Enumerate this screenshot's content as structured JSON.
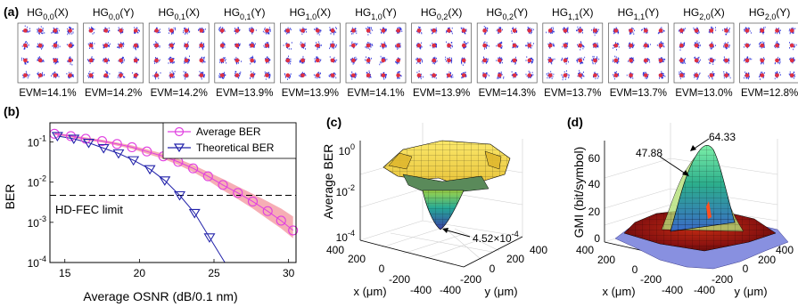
{
  "panel_labels": {
    "a": "(a)",
    "b": "(b)",
    "c": "(c)",
    "d": "(d)"
  },
  "constellations": [
    {
      "mode_base": "HG",
      "mode_sub": "0,0",
      "pol": "(X)",
      "evm": "EVM=14.1%"
    },
    {
      "mode_base": "HG",
      "mode_sub": "0,0",
      "pol": "(Y)",
      "evm": "EVM=14.2%"
    },
    {
      "mode_base": "HG",
      "mode_sub": "0,1",
      "pol": "(X)",
      "evm": "EVM=14.2%"
    },
    {
      "mode_base": "HG",
      "mode_sub": "0,1",
      "pol": "(Y)",
      "evm": "EVM=13.9%"
    },
    {
      "mode_base": "HG",
      "mode_sub": "1,0",
      "pol": "(X)",
      "evm": "EVM=13.9%"
    },
    {
      "mode_base": "HG",
      "mode_sub": "1,0",
      "pol": "(Y)",
      "evm": "EVM=14.1%"
    },
    {
      "mode_base": "HG",
      "mode_sub": "0,2",
      "pol": "(X)",
      "evm": "EVM=13.9%"
    },
    {
      "mode_base": "HG",
      "mode_sub": "0,2",
      "pol": "(Y)",
      "evm": "EVM=14.3%"
    },
    {
      "mode_base": "HG",
      "mode_sub": "1,1",
      "pol": "(X)",
      "evm": "EVM=13.7%"
    },
    {
      "mode_base": "HG",
      "mode_sub": "1,1",
      "pol": "(Y)",
      "evm": "EVM=13.7%"
    },
    {
      "mode_base": "HG",
      "mode_sub": "2,0",
      "pol": "(X)",
      "evm": "EVM=13.0%"
    },
    {
      "mode_base": "HG",
      "mode_sub": "2,0",
      "pol": "(Y)",
      "evm": "EVM=12.8%"
    }
  ],
  "colors": {
    "average": "#e040e0",
    "theoretical": "#2222aa",
    "band": "#f4a0a8",
    "cloud": "#2a30d8",
    "core": "#e03040"
  },
  "chart_data": {
    "type": "line",
    "xlabel": "Average OSNR (dB/0.1 nm)",
    "ylabel": "BER",
    "y_scale": "log",
    "xlim": [
      14,
      30.5
    ],
    "ylim": [
      0.0001,
      0.3
    ],
    "x_ticks": [
      "15",
      "20",
      "25",
      "30"
    ],
    "y_ticks": [
      {
        "base": "10",
        "exp": "-1"
      },
      {
        "base": "10",
        "exp": "-2"
      },
      {
        "base": "10",
        "exp": "-3"
      },
      {
        "base": "10",
        "exp": "-4"
      }
    ],
    "threshold": {
      "label": "HD-FEC limit",
      "value": 0.0047
    },
    "legend": {
      "position": "top-right"
    },
    "series": [
      {
        "name": "Average BER",
        "marker": "circle",
        "x": [
          14.3,
          15.4,
          16.4,
          17.5,
          18.5,
          19.5,
          20.5,
          21.6,
          22.6,
          23.6,
          24.6,
          25.6,
          26.6,
          27.6,
          28.6,
          29.5,
          30.3
        ],
        "y": [
          0.16,
          0.14,
          0.12,
          0.105,
          0.089,
          0.074,
          0.058,
          0.044,
          0.032,
          0.022,
          0.014,
          0.0085,
          0.0054,
          0.0033,
          0.0019,
          0.0011,
          0.00063
        ],
        "y_upper": [
          0.17,
          0.15,
          0.13,
          0.114,
          0.097,
          0.082,
          0.066,
          0.051,
          0.038,
          0.027,
          0.018,
          0.012,
          0.0078,
          0.0051,
          0.0033,
          0.0022,
          0.0014
        ],
        "y_lower": [
          0.15,
          0.13,
          0.11,
          0.097,
          0.081,
          0.067,
          0.051,
          0.038,
          0.027,
          0.018,
          0.011,
          0.0063,
          0.0038,
          0.0022,
          0.0012,
          0.0007,
          0.0004
        ]
      },
      {
        "name": "Theoretical BER",
        "marker": "triangle-down",
        "x": [
          14.5,
          15.6,
          16.6,
          17.6,
          18.6,
          19.6,
          20.7,
          21.7,
          22.7,
          23.7,
          24.7
        ],
        "y": [
          0.14,
          0.12,
          0.095,
          0.07,
          0.052,
          0.035,
          0.021,
          0.011,
          0.0047,
          0.0017,
          0.00042
        ]
      }
    ]
  },
  "surface_c": {
    "zlabel": "Average BER",
    "xlabel": "x (μm)",
    "ylabel": "y (μm)",
    "z_ticks": [
      {
        "base": "10",
        "exp": "0"
      },
      {
        "base": "10",
        "exp": "-2"
      },
      {
        "base": "10",
        "exp": "-4"
      }
    ],
    "x_ticks": [
      "400",
      "200",
      "0",
      "-200",
      "-400"
    ],
    "y_ticks": [
      "-400",
      "-200",
      "0",
      "200",
      "400"
    ],
    "annotation": {
      "mantissa": "4.52×10",
      "exp": "-4",
      "value": 0.000452
    }
  },
  "surface_d": {
    "zlabel": "GMI (bit/symbol)",
    "xlabel": "x (μm)",
    "ylabel": "y (μm)",
    "z_ticks": [
      "60",
      "40",
      "20",
      "0"
    ],
    "x_ticks": [
      "400",
      "200",
      "0",
      "-200",
      "-400"
    ],
    "y_ticks": [
      "-400",
      "-200",
      "0",
      "200",
      "400"
    ],
    "annotations": [
      "64.33",
      "47.88"
    ]
  }
}
